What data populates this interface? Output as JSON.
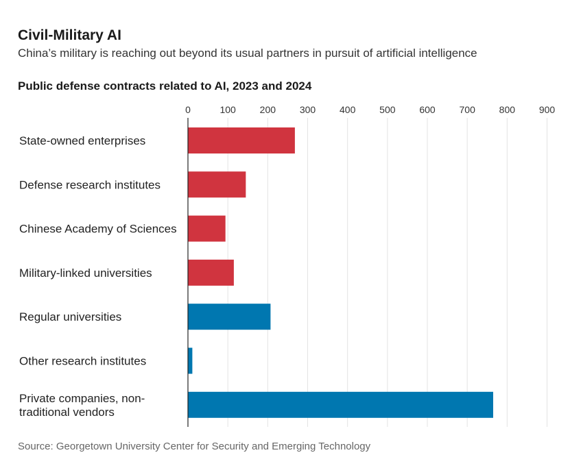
{
  "header": {
    "title": "Civil-Military AI",
    "subtitle": "China’s military is reaching out beyond its usual partners in pursuit of artificial intelligence"
  },
  "source": "Source: Georgetown University Center for Security and Emerging Technology",
  "colors": {
    "red": "#d0343f",
    "blue": "#0077b0",
    "grid": "#e3e3e3",
    "axis": "#222222"
  },
  "chart_data": {
    "type": "bar",
    "orientation": "horizontal",
    "title": "Public defense contracts related to AI, 2023 and 2024",
    "xlim": [
      0,
      900
    ],
    "ticks": [
      0,
      100,
      200,
      300,
      400,
      500,
      600,
      700,
      800,
      900
    ],
    "grid": true,
    "categories": [
      [
        "State-owned enterprises"
      ],
      [
        "Defense research institutes"
      ],
      [
        "Chinese Academy of Sciences"
      ],
      [
        "Military-linked universities"
      ],
      [
        "Regular universities"
      ],
      [
        "Other research institutes"
      ],
      [
        "Private companies, non-",
        "traditional vendors"
      ]
    ],
    "values": [
      268,
      145,
      94,
      115,
      207,
      11,
      765
    ],
    "bar_colors": [
      "#d0343f",
      "#d0343f",
      "#d0343f",
      "#d0343f",
      "#0077b0",
      "#0077b0",
      "#0077b0"
    ]
  }
}
